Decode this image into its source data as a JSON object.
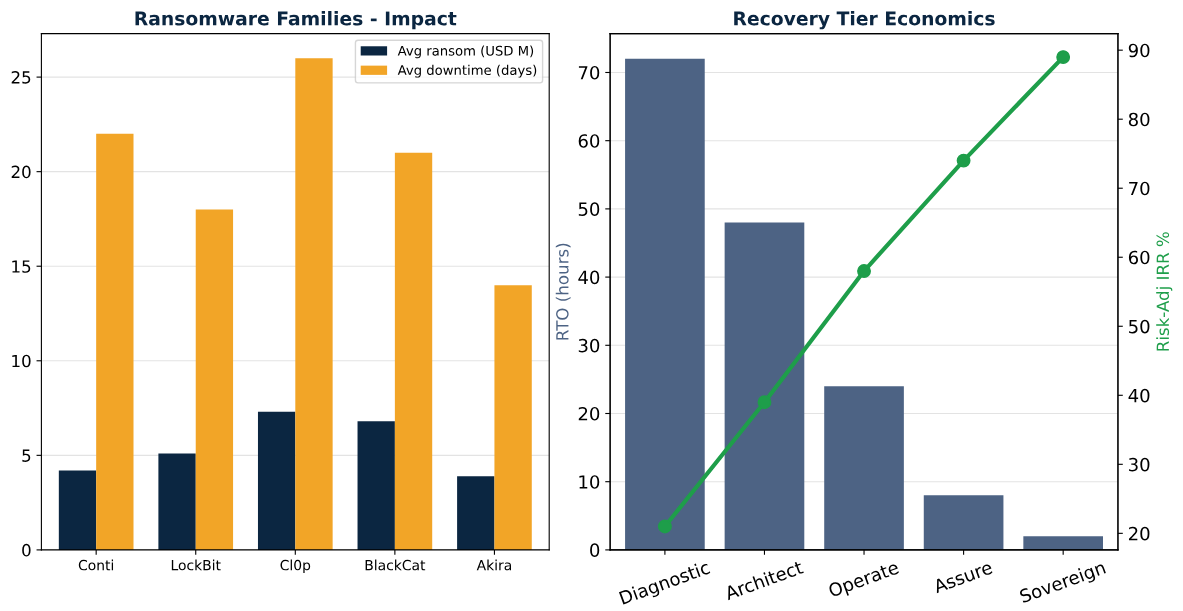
{
  "chart_data": [
    {
      "type": "bar",
      "title": "Ransomware Families - Impact",
      "categories": [
        "Conti",
        "LockBit",
        "Cl0p",
        "BlackCat",
        "Akira"
      ],
      "series": [
        {
          "name": "Avg ransom (USD M)",
          "color": "#0b2641",
          "values": [
            4.2,
            5.1,
            7.3,
            6.8,
            3.9
          ]
        },
        {
          "name": "Avg downtime (days)",
          "color": "#f2a527",
          "values": [
            22,
            18,
            26,
            21,
            14
          ]
        }
      ],
      "ylim": [
        0,
        27.3
      ],
      "yticks": [
        0,
        5,
        10,
        15,
        20,
        25
      ],
      "grid": "y",
      "legend": "top right"
    },
    {
      "type": "bar",
      "title": "Recovery Tier Economics",
      "categories": [
        "Diagnostic",
        "Architect",
        "Operate",
        "Assure",
        "Sovereign"
      ],
      "ylabel": "RTO (hours)",
      "y2label": "Risk-Adj IRR %",
      "series": [
        {
          "type": "bar",
          "color": "#4d6384",
          "values": [
            72,
            48,
            24,
            8,
            2
          ]
        },
        {
          "type": "line",
          "axis": "y2",
          "color": "#1e9e4a",
          "marker": "circle",
          "values": [
            21,
            39,
            58,
            74,
            89
          ]
        }
      ],
      "ylim": [
        0,
        75.7
      ],
      "yticks": [
        0,
        10,
        20,
        30,
        40,
        50,
        60,
        70
      ],
      "y2lim": [
        17.6,
        92.4
      ],
      "y2ticks": [
        20,
        30,
        40,
        50,
        60,
        70,
        80,
        90
      ],
      "grid": "y"
    }
  ]
}
